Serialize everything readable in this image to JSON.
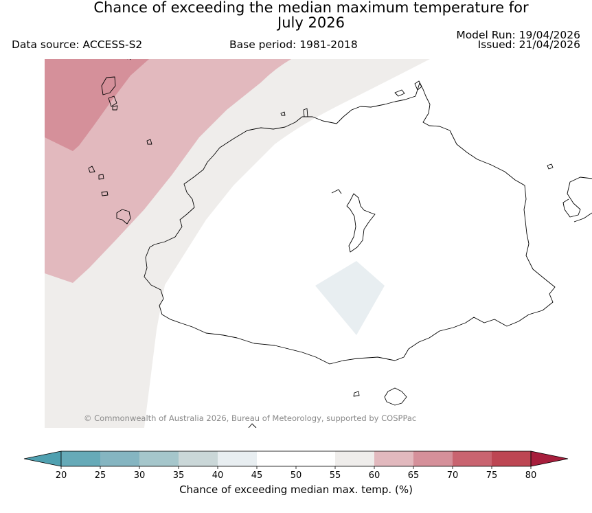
{
  "header": {
    "title_line1": "Chance of exceeding the median maximum temperature for",
    "title_line2": "July 2026",
    "data_source": "Data source: ACCESS-S2",
    "base_period": "Base period: 1981-2018",
    "model_run": "Model Run: 19/04/2026",
    "issued": "Issued: 21/04/2026"
  },
  "map": {
    "copyright": "© Commonwealth of Australia 2026, Bureau of Meteorology, supported by COSPPac"
  },
  "colorbar": {
    "label": "Chance of exceeding median max. temp. (%)",
    "ticks": [
      "20",
      "25",
      "30",
      "35",
      "40",
      "45",
      "50",
      "55",
      "60",
      "65",
      "70",
      "75",
      "80"
    ],
    "colors": {
      "below_20": "#4fa0b0",
      "20-25": "#66aab8",
      "25-30": "#85b5c1",
      "30-35": "#a5c6cb",
      "35-40": "#cad7d8",
      "40-45": "#e8eef1",
      "45-50": "#ffffff",
      "50-55": "#ffffff",
      "55-60": "#efedeb",
      "60-65": "#e2b9be",
      "65-70": "#d5909a",
      "70-75": "#c96470",
      "75-80": "#bd4653",
      "above_80": "#a71e3c"
    }
  }
}
